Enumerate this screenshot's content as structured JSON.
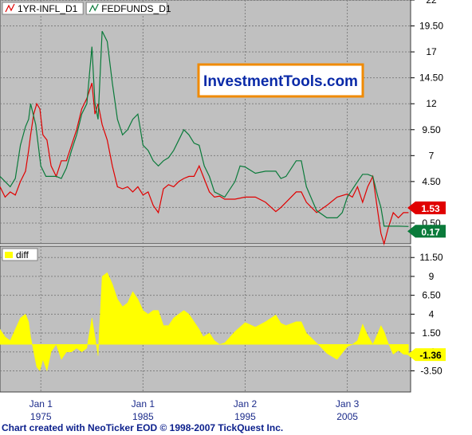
{
  "footer_text": "Chart created with NeoTicker EOD © 1998-2007 TickQuest Inc.",
  "watermark": "InvestmentTools.com",
  "colors": {
    "background": "#c0c0c0",
    "infl": "#e00000",
    "fed": "#0a7a3a",
    "diff": "#ffff00",
    "grid": "#7f7f7f",
    "watermark_text": "#0a2aa8",
    "watermark_border": "#f08a00"
  },
  "chart_data": [
    {
      "type": "line",
      "series": [
        {
          "name": "1YR-INFL_D1",
          "color": "#e00000",
          "last_value": "1.53",
          "x": [
            1971.0,
            1971.5,
            1972.0,
            1972.5,
            1973.0,
            1973.5,
            1973.8,
            1974.0,
            1974.3,
            1974.6,
            1974.9,
            1975.2,
            1975.6,
            1976.0,
            1976.5,
            1977.0,
            1977.5,
            1978.0,
            1978.5,
            1979.0,
            1979.5,
            1980.0,
            1980.3,
            1980.6,
            1981.0,
            1981.5,
            1982.0,
            1982.5,
            1983.0,
            1983.5,
            1984.0,
            1984.5,
            1985.0,
            1985.5,
            1986.0,
            1986.5,
            1987.0,
            1987.5,
            1988.0,
            1988.5,
            1989.0,
            1989.5,
            1990.0,
            1990.5,
            1990.9,
            1991.5,
            1992.0,
            1992.5,
            1993.0,
            1994.0,
            1995.0,
            1996.0,
            1997.0,
            1998.0,
            1998.5,
            1999.0,
            2000.0,
            2000.5,
            2001.0,
            2002.0,
            2003.0,
            2004.0,
            2005.0,
            2005.5,
            2006.0,
            2006.5,
            2007.0,
            2007.5,
            2008.0,
            2008.3,
            2008.6,
            2009.0,
            2009.5,
            2010.0,
            2010.5,
            2011.0
          ],
          "y": [
            4.0,
            3.0,
            3.5,
            3.2,
            4.5,
            5.5,
            7.5,
            9.0,
            11.0,
            12.0,
            11.5,
            9.0,
            8.5,
            6.0,
            5.0,
            6.5,
            6.5,
            8.0,
            9.5,
            11.5,
            12.5,
            14.0,
            11.0,
            12.0,
            10.0,
            8.5,
            6.0,
            4.0,
            3.8,
            4.0,
            3.5,
            4.0,
            3.2,
            3.5,
            2.2,
            1.5,
            3.8,
            4.2,
            4.0,
            4.5,
            4.8,
            5.0,
            5.0,
            6.0,
            5.0,
            3.5,
            3.0,
            3.1,
            2.8,
            2.8,
            3.0,
            3.0,
            2.5,
            1.6,
            2.0,
            2.5,
            3.5,
            3.5,
            2.5,
            1.5,
            2.2,
            3.0,
            3.3,
            3.0,
            4.0,
            2.5,
            4.0,
            5.0,
            1.5,
            -0.5,
            -1.5,
            0.0,
            1.5,
            1.0,
            1.5,
            1.5
          ]
        },
        {
          "name": "FEDFUNDS_D1",
          "color": "#0a7a3a",
          "last_value": "0.17",
          "x": [
            1971.0,
            1971.5,
            1972.0,
            1972.5,
            1973.0,
            1973.5,
            1973.8,
            1974.0,
            1974.5,
            1975.0,
            1975.5,
            1976.0,
            1976.5,
            1977.0,
            1977.5,
            1978.0,
            1978.5,
            1979.0,
            1979.5,
            1980.0,
            1980.3,
            1980.6,
            1981.0,
            1981.5,
            1982.0,
            1982.5,
            1983.0,
            1983.5,
            1984.0,
            1984.5,
            1985.0,
            1985.5,
            1986.0,
            1986.5,
            1987.0,
            1987.5,
            1988.0,
            1988.5,
            1989.0,
            1989.5,
            1990.0,
            1990.5,
            1991.0,
            1991.5,
            1992.0,
            1993.0,
            1994.0,
            1994.5,
            1995.0,
            1996.0,
            1997.0,
            1998.0,
            1998.5,
            1999.0,
            2000.0,
            2000.5,
            2001.0,
            2002.0,
            2003.0,
            2004.0,
            2004.5,
            2005.0,
            2006.0,
            2006.5,
            2007.0,
            2007.5,
            2008.0,
            2008.3,
            2008.6,
            2009.0,
            2010.0,
            2011.0
          ],
          "y": [
            5.0,
            4.5,
            4.0,
            4.8,
            8.0,
            9.8,
            10.5,
            12.0,
            10.0,
            6.0,
            5.0,
            5.0,
            5.0,
            4.8,
            5.8,
            7.5,
            9.0,
            11.0,
            12.0,
            17.5,
            12.0,
            10.5,
            19.0,
            18.0,
            14.0,
            10.5,
            9.0,
            9.5,
            10.5,
            11.0,
            8.0,
            7.5,
            6.5,
            6.0,
            6.5,
            6.8,
            7.5,
            8.5,
            9.5,
            9.0,
            8.2,
            8.0,
            6.0,
            5.0,
            3.5,
            3.0,
            4.5,
            6.0,
            5.9,
            5.3,
            5.5,
            5.5,
            4.8,
            5.0,
            6.5,
            6.5,
            4.0,
            1.7,
            1.0,
            1.0,
            1.5,
            3.0,
            4.5,
            5.2,
            5.2,
            5.0,
            3.0,
            2.0,
            0.2,
            0.2,
            0.2,
            0.17
          ]
        }
      ],
      "ylim": [
        -1.5,
        22
      ],
      "y_ticks": [
        "0.50",
        "2",
        "4.50",
        "7",
        "9.50",
        "12",
        "14.50",
        "17",
        "19.50",
        "22"
      ],
      "y_tick_values": [
        0.5,
        2,
        4.5,
        7,
        9.5,
        12,
        14.5,
        17,
        19.5,
        22
      ],
      "grid": true,
      "legend": "top-left"
    },
    {
      "type": "area",
      "series": [
        {
          "name": "diff",
          "color": "#ffff00",
          "last_value": "-1.36",
          "x": [
            1971.0,
            1971.5,
            1972.0,
            1972.5,
            1973.0,
            1973.5,
            1973.8,
            1974.0,
            1974.3,
            1974.6,
            1974.9,
            1975.2,
            1975.6,
            1976.0,
            1976.5,
            1977.0,
            1977.5,
            1978.0,
            1978.5,
            1979.0,
            1979.5,
            1980.0,
            1980.3,
            1980.6,
            1981.0,
            1981.5,
            1982.0,
            1982.5,
            1983.0,
            1983.5,
            1984.0,
            1984.5,
            1985.0,
            1985.5,
            1986.0,
            1986.5,
            1987.0,
            1987.5,
            1988.0,
            1988.5,
            1989.0,
            1989.5,
            1990.0,
            1990.5,
            1990.9,
            1991.5,
            1992.0,
            1992.5,
            1993.0,
            1994.0,
            1995.0,
            1996.0,
            1997.0,
            1998.0,
            1998.5,
            1999.0,
            2000.0,
            2000.5,
            2001.0,
            2002.0,
            2003.0,
            2004.0,
            2005.0,
            2005.5,
            2006.0,
            2006.5,
            2007.0,
            2007.5,
            2008.0,
            2008.3,
            2008.6,
            2009.0,
            2009.5,
            2010.0,
            2010.5,
            2011.0
          ],
          "y": [
            2.0,
            1.0,
            0.5,
            2.0,
            3.5,
            4.0,
            3.0,
            1.0,
            -1.0,
            -3.0,
            -3.5,
            -2.0,
            -3.5,
            -1.0,
            0.0,
            -2.0,
            -1.0,
            -1.0,
            -0.5,
            -1.0,
            -0.5,
            3.5,
            1.0,
            -1.5,
            9.0,
            9.5,
            8.0,
            6.0,
            5.0,
            5.5,
            7.0,
            6.0,
            4.5,
            4.0,
            4.5,
            4.5,
            2.5,
            2.5,
            3.5,
            4.0,
            4.5,
            4.0,
            3.0,
            2.0,
            1.0,
            1.5,
            0.5,
            0.0,
            0.2,
            1.7,
            2.9,
            2.3,
            3.0,
            3.9,
            2.8,
            2.5,
            3.0,
            3.0,
            1.5,
            0.2,
            -1.2,
            -2.0,
            -0.3,
            0.0,
            0.5,
            2.7,
            1.2,
            0.0,
            1.5,
            2.5,
            1.7,
            0.2,
            -1.3,
            -0.8,
            -1.3,
            -1.36
          ]
        }
      ],
      "ylim": [
        -6.3,
        13
      ],
      "y_ticks": [
        "-3.50",
        "-1",
        "1.50",
        "4",
        "6.50",
        "9",
        "11.50"
      ],
      "y_tick_values": [
        -3.5,
        -1,
        1.5,
        4,
        6.5,
        9,
        11.5
      ],
      "grid": true,
      "legend": "top-left"
    }
  ],
  "x_axis": {
    "ticks": [
      {
        "line1": "Jan 1",
        "line2": "1975",
        "x": 1975.0
      },
      {
        "line1": "Jan 1",
        "line2": "1985",
        "x": 1985.0
      },
      {
        "line1": "Jan 2",
        "line2": "1995",
        "x": 1995.0
      },
      {
        "line1": "Jan 3",
        "line2": "2005",
        "x": 2005.0
      }
    ],
    "range": [
      1971.0,
      2011.2
    ]
  }
}
